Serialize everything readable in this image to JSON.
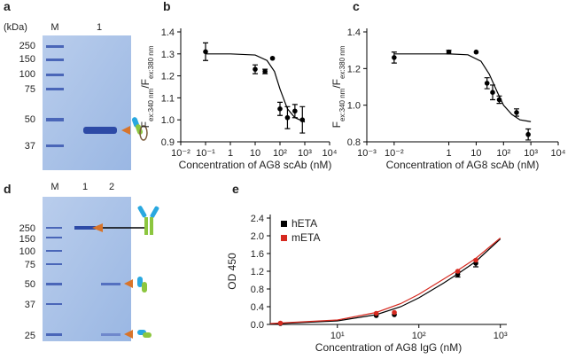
{
  "gels": [
    {
      "label": "a",
      "unit": "(kDa)",
      "lanes": [
        "M",
        "1"
      ],
      "markers": [
        250,
        150,
        100,
        75,
        50,
        37
      ]
    },
    {
      "label": "d",
      "lanes": [
        "M",
        "1",
        "2"
      ],
      "markers": [
        250,
        150,
        100,
        75,
        50,
        37,
        25
      ]
    }
  ],
  "chart_data": [
    {
      "type": "scatter",
      "label": "b",
      "xlog": true,
      "xlabel": "Concentration of AG8 scAb (nM)",
      "ylabel_parts": [
        "F",
        "ex:340 nm",
        "/F",
        "ex:380 nm"
      ],
      "xlim": [
        0.01,
        10000
      ],
      "xticks": [
        {
          "value": 0.01,
          "label": "10⁻²"
        },
        {
          "value": 0.1,
          "label": "10⁻¹"
        },
        1,
        10,
        {
          "value": 100,
          "label": "10²"
        },
        {
          "value": 1000,
          "label": "10³"
        },
        {
          "value": 10000,
          "label": "10⁴"
        }
      ],
      "ylim": [
        0.9,
        1.4
      ],
      "yticks": [
        0.9,
        {
          "value": 1,
          "label": "1.0"
        },
        1.1,
        1.2,
        1.3,
        1.4
      ],
      "series": [
        {
          "color": "#000000",
          "x": [
            0.1,
            10,
            25,
            50,
            100,
            200,
            400,
            800
          ],
          "values": [
            1.31,
            1.23,
            1.22,
            1.28,
            1.05,
            1.01,
            1.04,
            1.0
          ],
          "errors": [
            0.04,
            0.02,
            0.01,
            null,
            0.03,
            0.05,
            0.03,
            0.06
          ],
          "fit": {
            "x": [
              0.1,
              1,
              10,
              30,
              60,
              100,
              200,
              400,
              1000
            ],
            "values": [
              1.3,
              1.3,
              1.295,
              1.27,
              1.22,
              1.14,
              1.05,
              1.01,
              0.99
            ]
          }
        }
      ]
    },
    {
      "type": "scatter",
      "label": "c",
      "xlog": true,
      "xlabel": "Concentration of AG8 scAb (nM)",
      "ylabel_parts": [
        "F",
        "ex:340 nm",
        "/F",
        "ex:380 nm"
      ],
      "xlim": [
        0.001,
        10000
      ],
      "xticks": [
        {
          "value": 0.001,
          "label": "10⁻³"
        },
        {
          "value": 0.01,
          "label": "10⁻²"
        },
        1,
        10,
        {
          "value": 100,
          "label": "10²"
        },
        {
          "value": 1000,
          "label": "10³"
        },
        {
          "value": 10000,
          "label": "10⁴"
        }
      ],
      "ylim": [
        0.8,
        1.4
      ],
      "yticks": [
        0.8,
        {
          "value": 1,
          "label": "1.0"
        },
        1.2,
        1.4
      ],
      "series": [
        {
          "color": "#000000",
          "x": [
            0.01,
            1,
            10,
            25,
            40,
            70,
            300,
            800
          ],
          "values": [
            1.26,
            1.29,
            1.29,
            1.12,
            1.07,
            1.03,
            0.96,
            0.84
          ],
          "errors": [
            0.03,
            0.01,
            null,
            0.03,
            0.04,
            0.02,
            0.02,
            0.03
          ],
          "fit": {
            "x": [
              0.01,
              1,
              5,
              15,
              30,
              60,
              100,
              200,
              400,
              1000
            ],
            "values": [
              1.28,
              1.28,
              1.275,
              1.24,
              1.17,
              1.07,
              1.0,
              0.95,
              0.92,
              0.91
            ]
          }
        }
      ]
    },
    {
      "type": "scatter",
      "label": "e",
      "xlog": true,
      "xlabel": "Concentration of AG8 IgG (nM)",
      "ylabel_parts": [
        "OD 450"
      ],
      "xlim": [
        1.5,
        1200
      ],
      "xticks": [
        {
          "value": 10,
          "label": "10¹"
        },
        {
          "value": 100,
          "label": "10²"
        },
        {
          "value": 1000,
          "label": "10³"
        }
      ],
      "ylim": [
        0,
        2.4
      ],
      "yticks": [
        {
          "value": 0,
          "label": "0.0"
        },
        0.4,
        0.8,
        1.2,
        1.6,
        {
          "value": 2,
          "label": "2.0"
        },
        2.4
      ],
      "legend": "upper left",
      "series": [
        {
          "name": "hETA",
          "color": "#000000",
          "x": [
            2,
            30,
            50,
            300,
            500
          ],
          "values": [
            0.02,
            0.2,
            0.22,
            1.13,
            1.38
          ],
          "errors": [
            null,
            null,
            null,
            0.06,
            0.08
          ],
          "fit": {
            "x": [
              1.5,
              10,
              30,
              60,
              100,
              200,
              300,
              500,
              1000
            ],
            "values": [
              0.01,
              0.08,
              0.22,
              0.4,
              0.6,
              0.93,
              1.14,
              1.42,
              1.93
            ]
          }
        },
        {
          "name": "mETA",
          "color": "#d62a20",
          "x": [
            2,
            30,
            50,
            300,
            500
          ],
          "values": [
            0.03,
            0.25,
            0.27,
            1.2,
            1.45
          ],
          "errors": [
            null,
            null,
            null,
            null,
            null
          ],
          "fit": {
            "x": [
              1.5,
              10,
              30,
              60,
              100,
              200,
              300,
              500,
              1000
            ],
            "values": [
              0.02,
              0.1,
              0.27,
              0.47,
              0.68,
              1.02,
              1.22,
              1.49,
              1.95
            ]
          }
        }
      ]
    }
  ]
}
